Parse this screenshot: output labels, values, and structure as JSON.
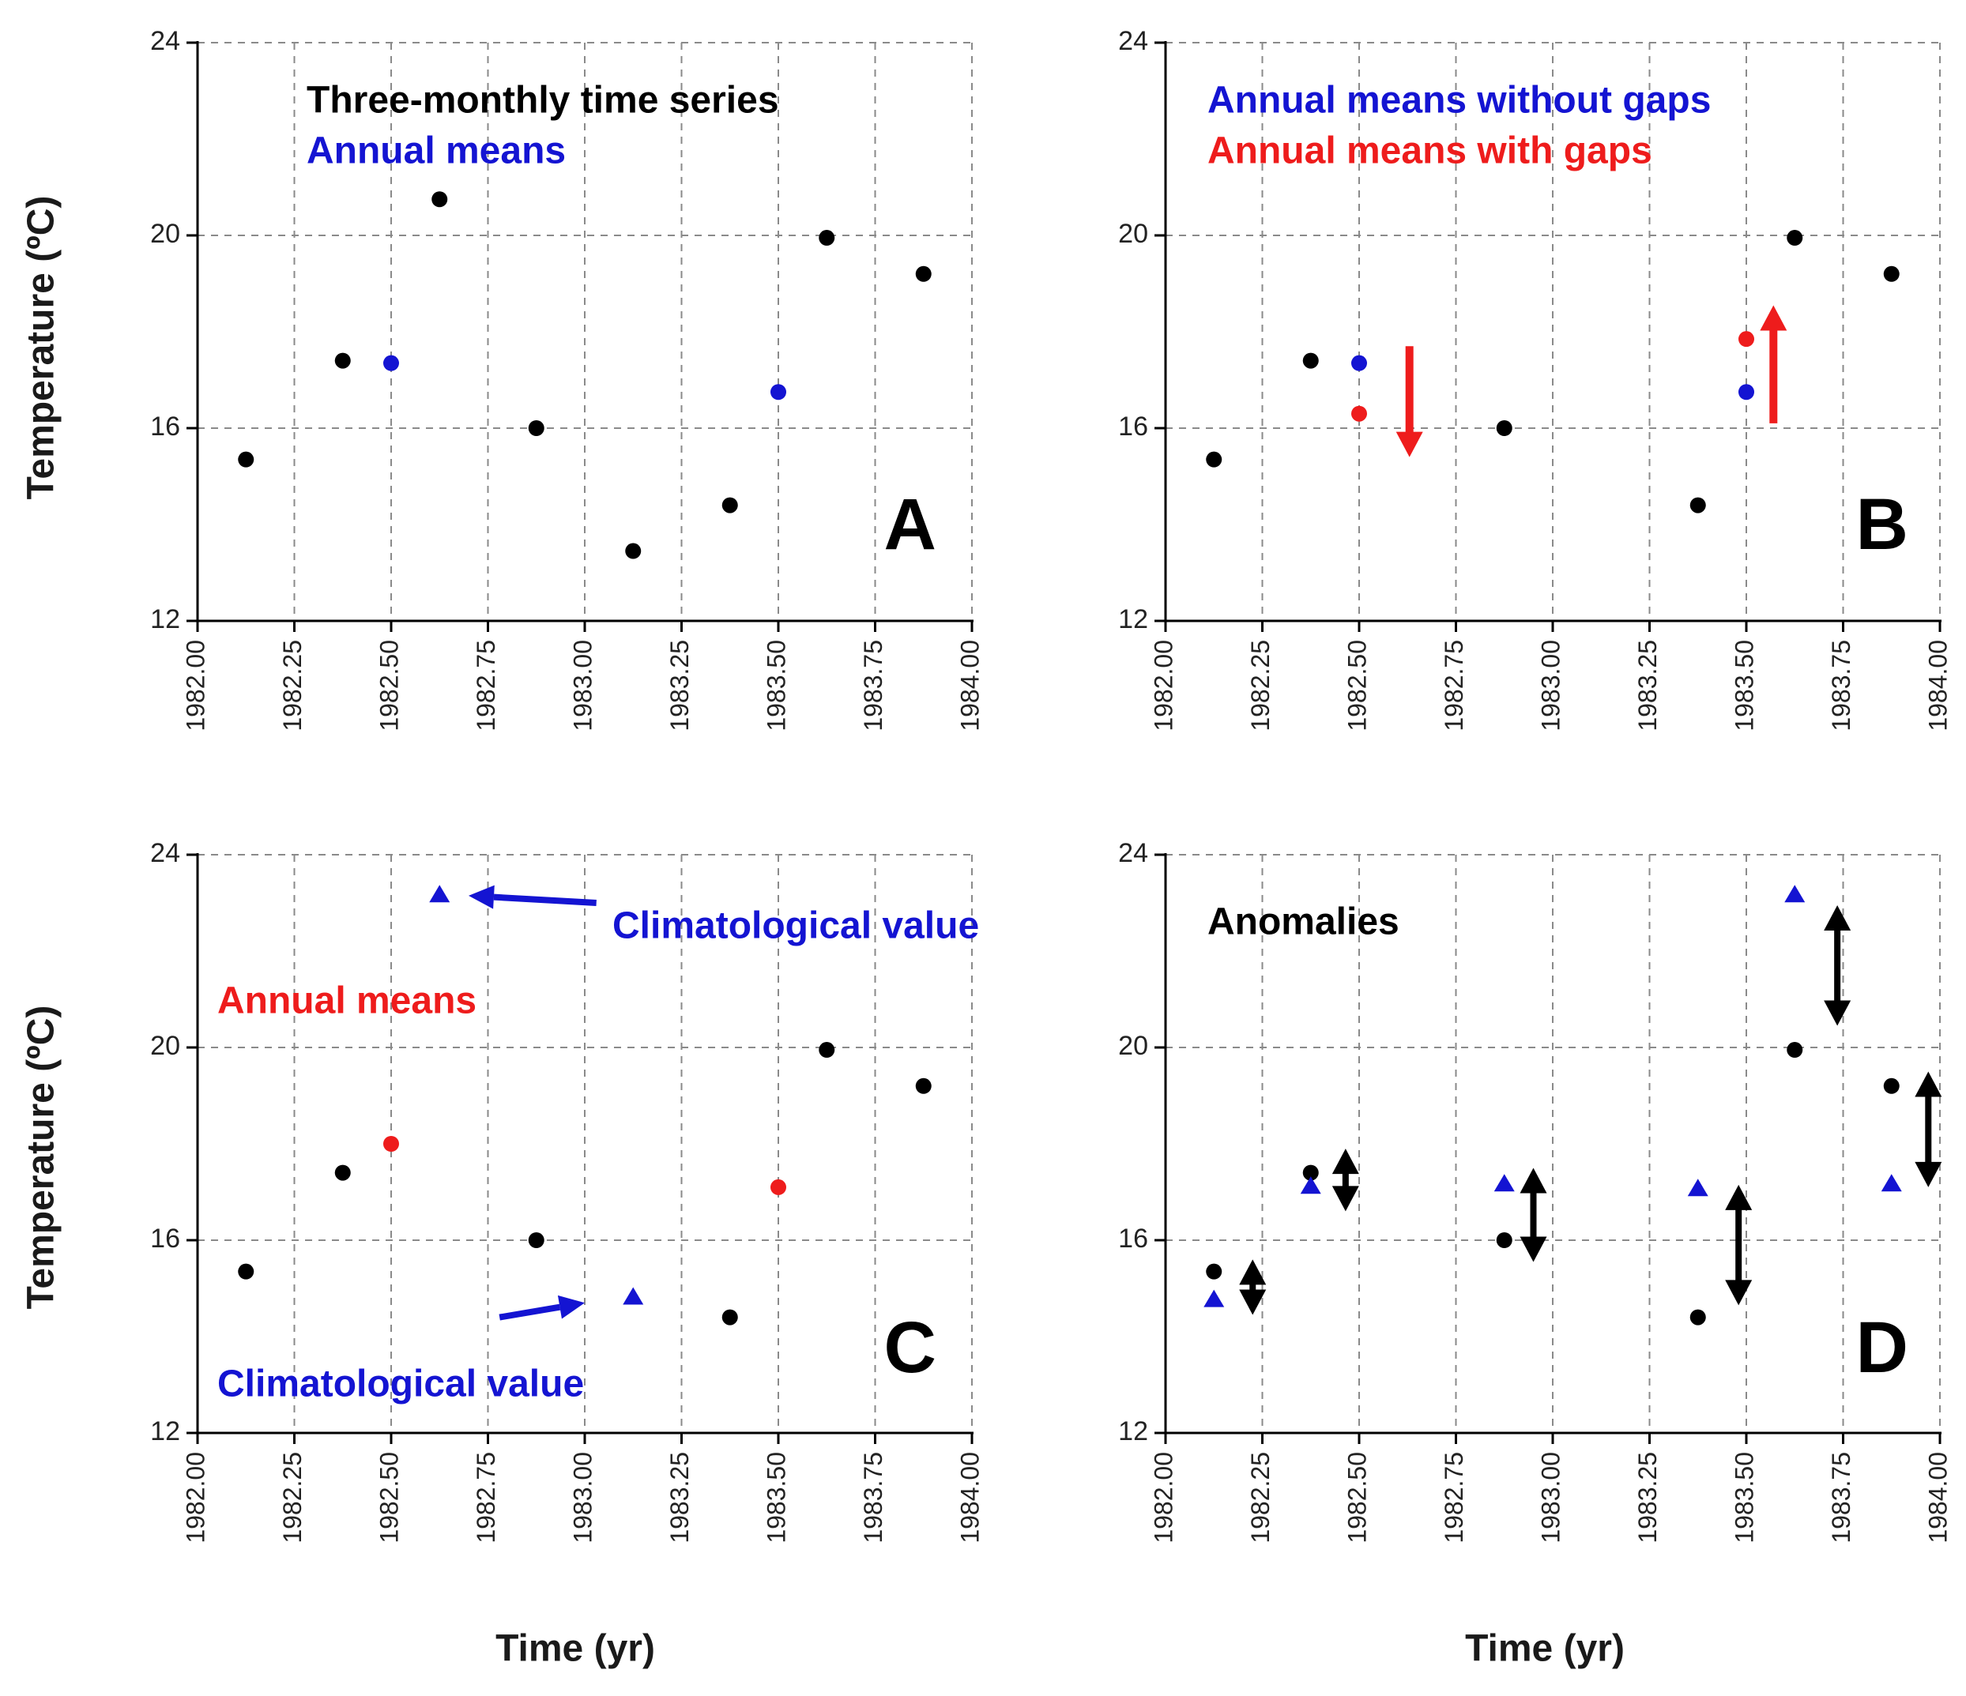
{
  "figure": {
    "y_axis_label": "Temperature (ºC)",
    "x_axis_label": "Time (yr)"
  },
  "chart_data": [
    {
      "panel": "A",
      "type": "scatter",
      "panel_letter": "A",
      "xlim": [
        1982.0,
        1984.0
      ],
      "ylim": [
        12,
        24
      ],
      "x_ticks": [
        1982.0,
        1982.25,
        1982.5,
        1982.75,
        1983.0,
        1983.25,
        1983.5,
        1983.75,
        1984.0
      ],
      "x_tick_labels": [
        "1982.00",
        "1982.25",
        "1982.50",
        "1982.75",
        "1983.00",
        "1983.25",
        "1983.50",
        "1983.75",
        "1984.00"
      ],
      "y_ticks": [
        12,
        16,
        20,
        24
      ],
      "y_tick_labels": [
        "12",
        "16",
        "20",
        "24"
      ],
      "legend_texts": [
        {
          "text": "Three-monthly time series",
          "color": "#000000"
        },
        {
          "text": "Annual means",
          "color": "#1414d2"
        }
      ],
      "series": [
        {
          "name": "Three-monthly time series",
          "marker": "circle",
          "color": "#000000",
          "x": [
            1982.125,
            1982.375,
            1982.625,
            1982.875,
            1983.125,
            1983.375,
            1983.625,
            1983.875
          ],
          "y": [
            15.35,
            17.4,
            20.75,
            16.0,
            13.45,
            14.4,
            19.95,
            19.2
          ]
        },
        {
          "name": "Annual means",
          "marker": "circle",
          "color": "#1414d2",
          "x": [
            1982.5,
            1983.5
          ],
          "y": [
            17.35,
            16.75
          ]
        }
      ]
    },
    {
      "panel": "B",
      "type": "scatter",
      "panel_letter": "B",
      "xlim": [
        1982.0,
        1984.0
      ],
      "ylim": [
        12,
        24
      ],
      "x_ticks": [
        1982.0,
        1982.25,
        1982.5,
        1982.75,
        1983.0,
        1983.25,
        1983.5,
        1983.75,
        1984.0
      ],
      "x_tick_labels": [
        "1982.00",
        "1982.25",
        "1982.50",
        "1982.75",
        "1983.00",
        "1983.25",
        "1983.50",
        "1983.75",
        "1984.00"
      ],
      "y_ticks": [
        12,
        16,
        20,
        24
      ],
      "y_tick_labels": [
        "12",
        "16",
        "20",
        "24"
      ],
      "legend_texts": [
        {
          "text": "Annual means without gaps",
          "color": "#1414d2"
        },
        {
          "text": "Annual means with gaps",
          "color": "#ee1c1c"
        }
      ],
      "series": [
        {
          "name": "Three-monthly time series",
          "marker": "circle",
          "color": "#000000",
          "x": [
            1982.125,
            1982.375,
            1982.875,
            1983.375,
            1983.625,
            1983.875
          ],
          "y": [
            15.35,
            17.4,
            16.0,
            14.4,
            19.95,
            19.2
          ]
        },
        {
          "name": "Annual means without gaps",
          "marker": "circle",
          "color": "#1414d2",
          "x": [
            1982.5,
            1983.5
          ],
          "y": [
            17.35,
            16.75
          ]
        },
        {
          "name": "Annual means with gaps",
          "marker": "circle",
          "color": "#ee1c1c",
          "x": [
            1982.5,
            1983.5
          ],
          "y": [
            16.3,
            17.85
          ]
        }
      ],
      "arrows": [
        {
          "x": 1982.63,
          "y_from": 17.7,
          "y_to": 15.4,
          "color": "#ee1c1c",
          "double": false
        },
        {
          "x": 1983.57,
          "y_from": 16.1,
          "y_to": 18.55,
          "color": "#ee1c1c",
          "double": false
        }
      ]
    },
    {
      "panel": "C",
      "type": "scatter",
      "panel_letter": "C",
      "xlim": [
        1982.0,
        1984.0
      ],
      "ylim": [
        12,
        24
      ],
      "x_ticks": [
        1982.0,
        1982.25,
        1982.5,
        1982.75,
        1983.0,
        1983.25,
        1983.5,
        1983.75,
        1984.0
      ],
      "x_tick_labels": [
        "1982.00",
        "1982.25",
        "1982.50",
        "1982.75",
        "1983.00",
        "1983.25",
        "1983.50",
        "1983.75",
        "1984.00"
      ],
      "y_ticks": [
        12,
        16,
        20,
        24
      ],
      "y_tick_labels": [
        "12",
        "16",
        "20",
        "24"
      ],
      "legend_texts": [
        {
          "text": "Annual means",
          "color": "#ee1c1c"
        }
      ],
      "series": [
        {
          "name": "Three-monthly time series",
          "marker": "circle",
          "color": "#000000",
          "x": [
            1982.125,
            1982.375,
            1982.875,
            1983.375,
            1983.625,
            1983.875
          ],
          "y": [
            15.35,
            17.4,
            16.0,
            14.4,
            19.95,
            19.2
          ]
        },
        {
          "name": "Annual means",
          "marker": "circle",
          "color": "#ee1c1c",
          "x": [
            1982.5,
            1983.5
          ],
          "y": [
            18.0,
            17.1
          ]
        },
        {
          "name": "Climatological value",
          "marker": "triangle",
          "color": "#1414d2",
          "x": [
            1982.625,
            1983.125
          ],
          "y": [
            23.15,
            14.8
          ]
        }
      ],
      "annotations": [
        {
          "text": "Climatological value",
          "color": "#1414d2",
          "arrow_from": [
            1983.03,
            23.0
          ],
          "arrow_to": [
            1982.7,
            23.15
          ]
        },
        {
          "text": "Climatological value",
          "color": "#1414d2",
          "arrow_from": [
            1982.78,
            14.4
          ],
          "arrow_to": [
            1983.0,
            14.7
          ]
        }
      ]
    },
    {
      "panel": "D",
      "type": "scatter",
      "panel_letter": "D",
      "xlim": [
        1982.0,
        1984.0
      ],
      "ylim": [
        12,
        24
      ],
      "x_ticks": [
        1982.0,
        1982.25,
        1982.5,
        1982.75,
        1983.0,
        1983.25,
        1983.5,
        1983.75,
        1984.0
      ],
      "x_tick_labels": [
        "1982.00",
        "1982.25",
        "1982.50",
        "1982.75",
        "1983.00",
        "1983.25",
        "1983.50",
        "1983.75",
        "1984.00"
      ],
      "y_ticks": [
        12,
        16,
        20,
        24
      ],
      "y_tick_labels": [
        "12",
        "16",
        "20",
        "24"
      ],
      "legend_texts": [
        {
          "text": "Anomalies",
          "color": "#000000"
        }
      ],
      "series": [
        {
          "name": "Three-monthly time series",
          "marker": "circle",
          "color": "#000000",
          "x": [
            1982.125,
            1982.375,
            1982.875,
            1983.375,
            1983.625,
            1983.875
          ],
          "y": [
            15.35,
            17.4,
            16.0,
            14.4,
            19.95,
            19.2
          ]
        },
        {
          "name": "Climatological values",
          "marker": "triangle",
          "color": "#1414d2",
          "x": [
            1982.125,
            1982.375,
            1982.875,
            1983.375,
            1983.625,
            1983.875
          ],
          "y": [
            14.75,
            17.1,
            17.15,
            17.05,
            23.15,
            17.15
          ]
        }
      ],
      "arrows": [
        {
          "x": 1982.225,
          "y_from": 14.45,
          "y_to": 15.6,
          "color": "#000000",
          "double": true
        },
        {
          "x": 1982.465,
          "y_from": 16.6,
          "y_to": 17.9,
          "color": "#000000",
          "double": true
        },
        {
          "x": 1982.95,
          "y_from": 15.55,
          "y_to": 17.5,
          "color": "#000000",
          "double": true
        },
        {
          "x": 1983.48,
          "y_from": 14.65,
          "y_to": 17.15,
          "color": "#000000",
          "double": true
        },
        {
          "x": 1983.735,
          "y_from": 20.45,
          "y_to": 22.95,
          "color": "#000000",
          "double": true
        },
        {
          "x": 1983.97,
          "y_from": 17.1,
          "y_to": 19.5,
          "color": "#000000",
          "double": true
        }
      ]
    }
  ]
}
